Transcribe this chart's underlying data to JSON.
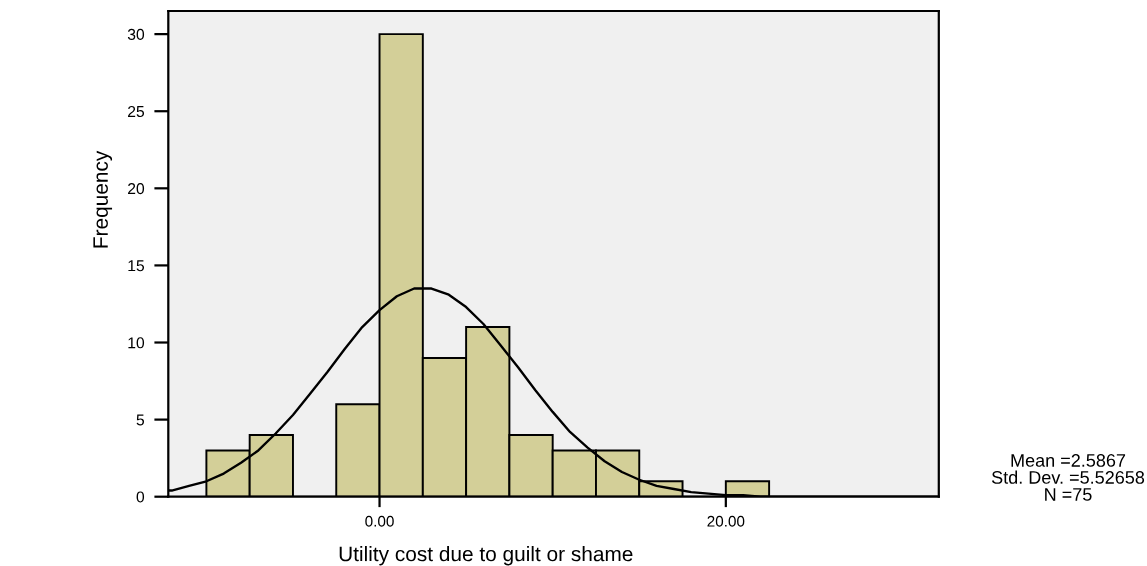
{
  "chart_data": {
    "type": "histogram",
    "xlabel": "Utility cost due to guilt or shame",
    "ylabel": "Frequency",
    "xlim": [
      -12.2,
      32.3
    ],
    "ylim": [
      0,
      31.5
    ],
    "xticks": [
      {
        "value": 0,
        "label": "0.00"
      },
      {
        "value": 20,
        "label": "20.00"
      }
    ],
    "yticks": [
      0,
      5,
      10,
      15,
      20,
      25,
      30
    ],
    "color": "#d3cf98",
    "bins": [
      -10,
      -7.5,
      -5,
      -2.5,
      0,
      2.5,
      5,
      7.5,
      10,
      12.5,
      15,
      17.5,
      20,
      22.5
    ],
    "values": [
      3,
      4,
      0,
      6,
      30,
      9,
      11,
      4,
      3,
      3,
      1,
      0,
      1
    ],
    "series": [
      {
        "type": "line",
        "color": "#000000",
        "x": [
          -12.2,
          -12,
          -11,
          -10,
          -9,
          -8,
          -7,
          -6,
          -5,
          -4,
          -3,
          -2,
          -1,
          0,
          1,
          2,
          2.6,
          3,
          4,
          5,
          6,
          7,
          8,
          9,
          10,
          11,
          12,
          13,
          14,
          15,
          16,
          17,
          18,
          19,
          20,
          21,
          22,
          24,
          32.3
        ],
        "values": [
          0.4,
          0.4,
          0.7,
          1.0,
          1.5,
          2.2,
          3.0,
          4.1,
          5.3,
          6.7,
          8.1,
          9.6,
          11.0,
          12.1,
          13.0,
          13.5,
          13.5,
          13.5,
          13.1,
          12.3,
          11.2,
          9.8,
          8.4,
          6.9,
          5.5,
          4.2,
          3.2,
          2.3,
          1.6,
          1.1,
          0.7,
          0.5,
          0.3,
          0.2,
          0.1,
          0.1,
          0.0,
          0.0,
          0.0
        ]
      }
    ],
    "annotations": [
      "Mean =2.5867",
      "Std. Dev. =5.52658",
      "N =75"
    ]
  }
}
